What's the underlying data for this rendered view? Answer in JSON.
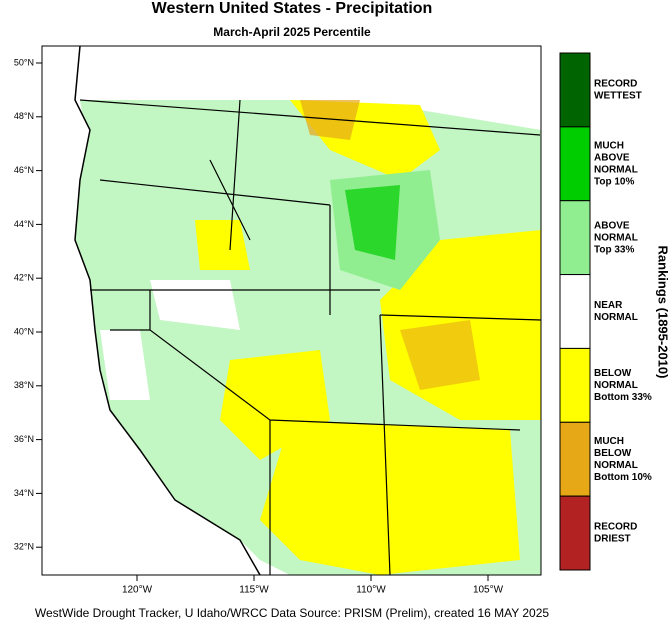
{
  "header": {
    "title": "Western United States - Precipitation",
    "subtitle": "March-April 2025 Percentile"
  },
  "map": {
    "lat_ticks": [
      {
        "value": 50,
        "label": "50°N"
      },
      {
        "value": 48,
        "label": "48°N"
      },
      {
        "value": 46,
        "label": "46°N"
      },
      {
        "value": 44,
        "label": "44°N"
      },
      {
        "value": 42,
        "label": "42°N"
      },
      {
        "value": 40,
        "label": "40°N"
      },
      {
        "value": 38,
        "label": "38°N"
      },
      {
        "value": 36,
        "label": "36°N"
      },
      {
        "value": 34,
        "label": "34°N"
      },
      {
        "value": 32,
        "label": "32°N"
      }
    ],
    "lon_ticks": [
      {
        "value": -120,
        "label": "120°W"
      },
      {
        "value": -115,
        "label": "115°W"
      },
      {
        "value": -110,
        "label": "110°W"
      },
      {
        "value": -105,
        "label": "105°W"
      }
    ]
  },
  "legend": {
    "title": "Rankings (1895-2010)",
    "items": [
      {
        "label": [
          "RECORD",
          "WETTEST"
        ],
        "color": "#006400"
      },
      {
        "label": [
          "MUCH",
          "ABOVE",
          "NORMAL",
          "Top 10%"
        ],
        "color": "#00cd00"
      },
      {
        "label": [
          "ABOVE",
          "NORMAL",
          "Top 33%"
        ],
        "color": "#90ee90"
      },
      {
        "label": [
          "NEAR",
          "NORMAL"
        ],
        "color": "#ffffff"
      },
      {
        "label": [
          "BELOW",
          "NORMAL",
          "Bottom 33%"
        ],
        "color": "#ffff00"
      },
      {
        "label": [
          "MUCH",
          "BELOW",
          "NORMAL",
          "Bottom 10%"
        ],
        "color": "#e6a817"
      },
      {
        "label": [
          "RECORD",
          "DRIEST"
        ],
        "color": "#b22222"
      }
    ]
  },
  "footer": "WestWide Drought Tracker, U Idaho/WRCC Data Source: PRISM (Prelim), created 16 MAY 2025"
}
